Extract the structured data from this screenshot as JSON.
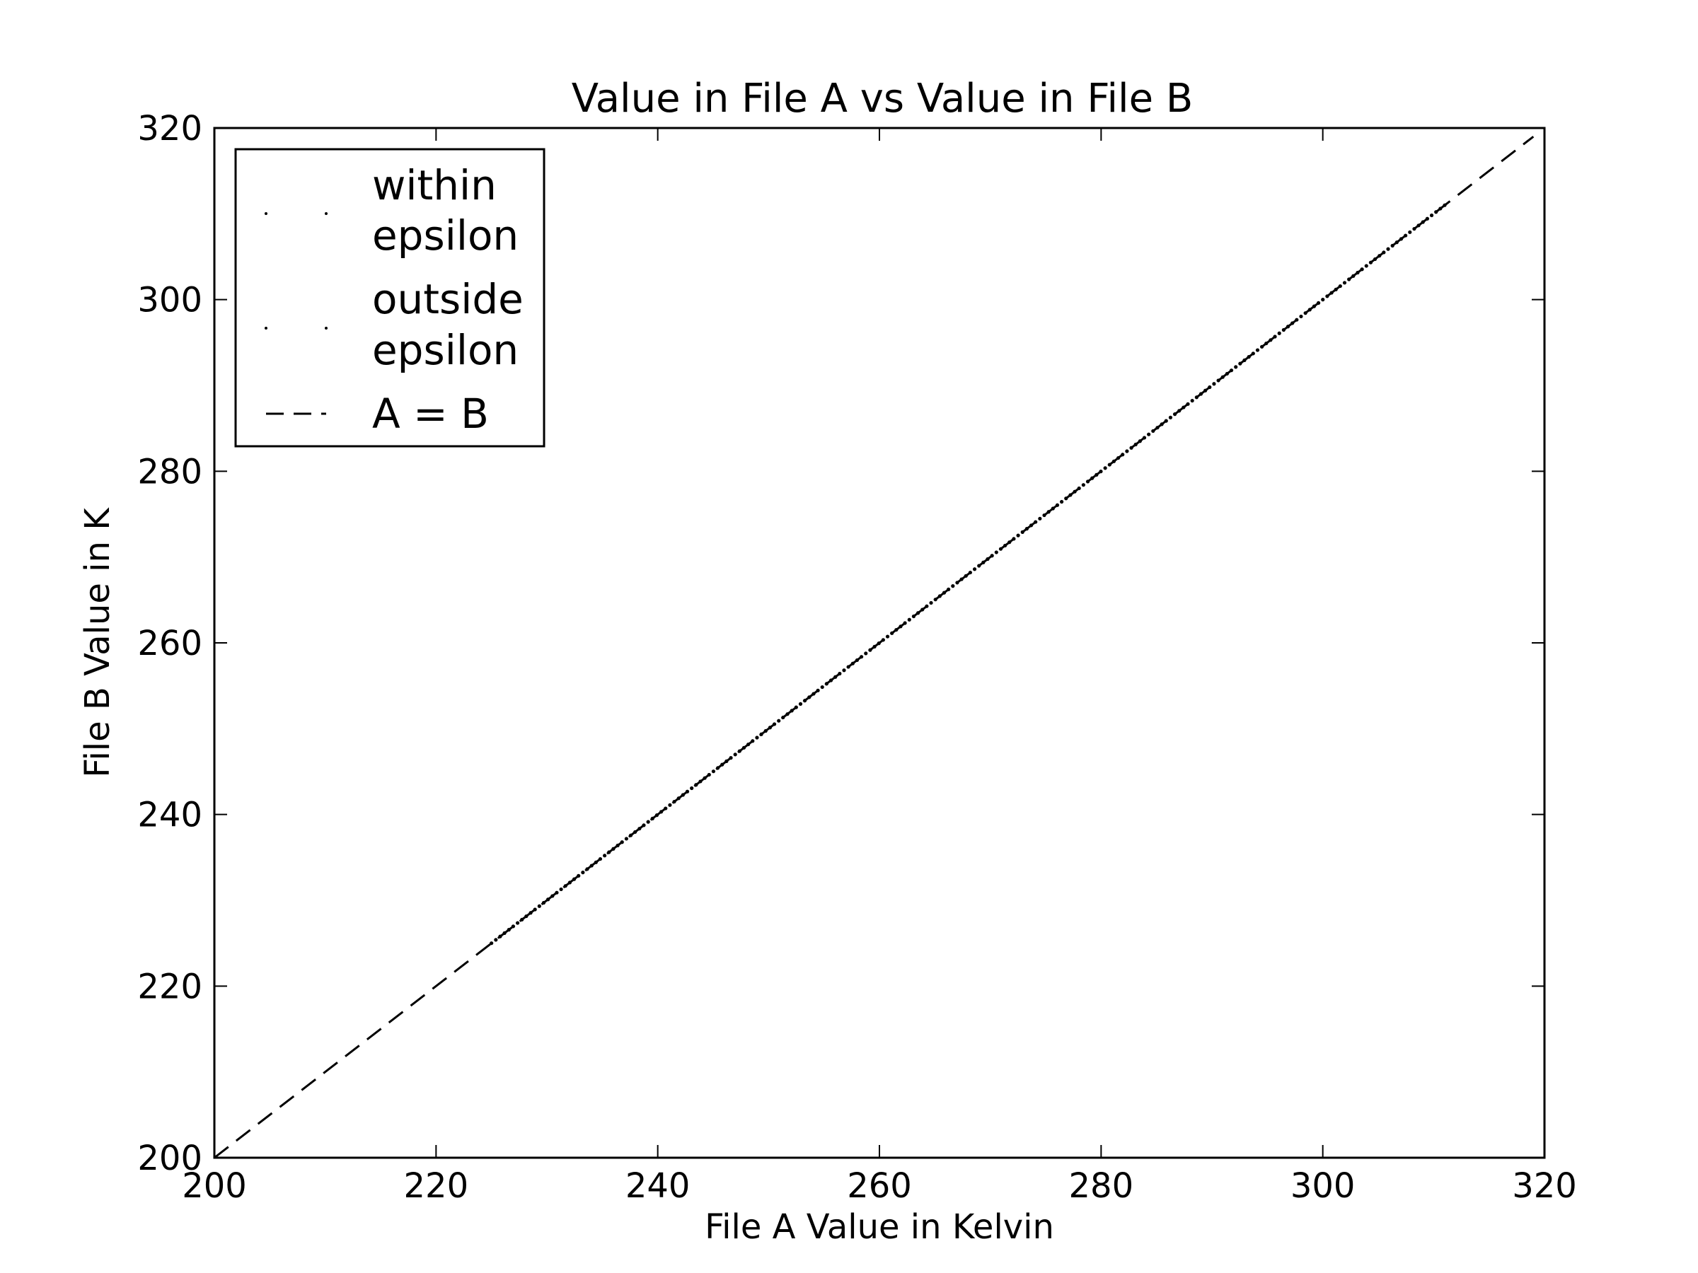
{
  "chart_data": {
    "type": "scatter",
    "title": "Value in File A vs Value in File B",
    "xlabel": "File A Value in Kelvin",
    "ylabel": "File B Value in K",
    "xlim": [
      200,
      320
    ],
    "ylim": [
      200,
      320
    ],
    "xticks": [
      "200",
      "220",
      "240",
      "260",
      "280",
      "300",
      "320"
    ],
    "yticks": [
      "200",
      "220",
      "240",
      "260",
      "280",
      "300",
      "320"
    ],
    "grid": false,
    "legend_position": "top-left",
    "legend": [
      {
        "label_lines": [
          "within",
          "epsilon"
        ],
        "marker": "point"
      },
      {
        "label_lines": [
          "outside",
          "epsilon"
        ],
        "marker": "point"
      },
      {
        "label_lines": [
          "A = B"
        ],
        "marker": "dashed-line"
      }
    ],
    "series": [
      {
        "name": "within epsilon",
        "style": "points",
        "x_range": [
          225,
          311
        ],
        "point_count": 220
      },
      {
        "name": "outside epsilon",
        "style": "points",
        "x_range": [
          225,
          311
        ],
        "point_count": 0
      },
      {
        "name": "A = B",
        "style": "dashed",
        "x": [
          200,
          319
        ],
        "y": [
          200,
          319
        ]
      }
    ],
    "colors": {
      "axes": "#000000",
      "points": "#000000",
      "background": "#ffffff"
    }
  }
}
